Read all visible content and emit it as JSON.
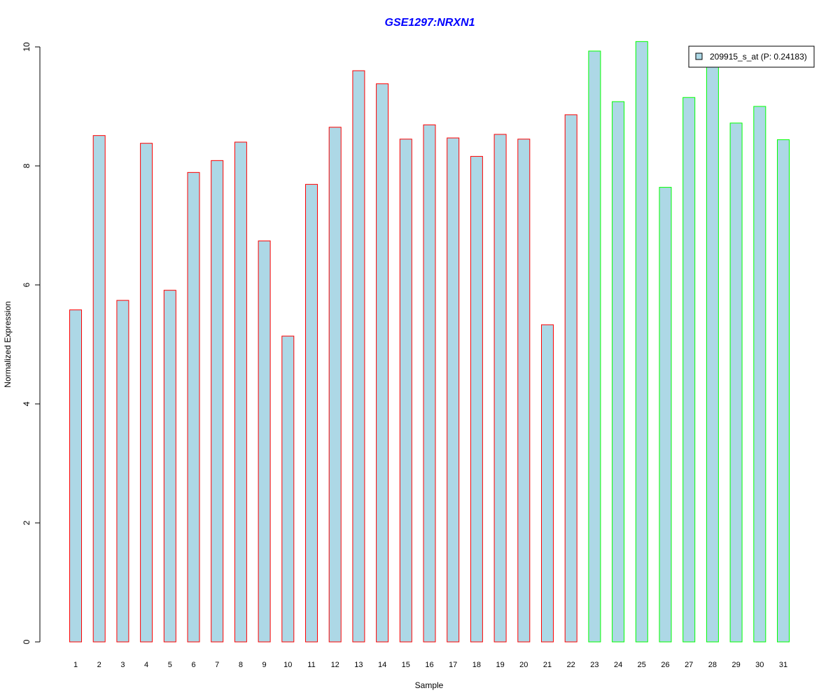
{
  "chart_data": {
    "type": "bar",
    "title": "GSE1297:NRXN1",
    "xlabel": "Sample",
    "ylabel": "Normalized Expression",
    "ylim": [
      0,
      10
    ],
    "yticks": [
      0,
      2,
      4,
      6,
      8,
      10
    ],
    "categories": [
      "1",
      "2",
      "3",
      "4",
      "5",
      "6",
      "7",
      "8",
      "9",
      "10",
      "11",
      "12",
      "13",
      "14",
      "15",
      "16",
      "17",
      "18",
      "19",
      "20",
      "21",
      "22",
      "23",
      "24",
      "25",
      "26",
      "27",
      "28",
      "29",
      "30",
      "31"
    ],
    "values": [
      5.58,
      8.51,
      5.74,
      8.38,
      5.91,
      7.89,
      8.09,
      8.4,
      6.74,
      5.14,
      7.69,
      8.65,
      9.6,
      9.38,
      8.45,
      8.69,
      8.47,
      8.16,
      8.53,
      8.45,
      5.33,
      8.86,
      9.93,
      9.08,
      10.09,
      7.64,
      9.15,
      9.75,
      8.72,
      9.0,
      8.44
    ],
    "groups": [
      "red",
      "red",
      "red",
      "red",
      "red",
      "red",
      "red",
      "red",
      "red",
      "red",
      "red",
      "red",
      "red",
      "red",
      "red",
      "red",
      "red",
      "red",
      "red",
      "red",
      "red",
      "red",
      "green",
      "green",
      "green",
      "green",
      "green",
      "green",
      "green",
      "green",
      "green"
    ],
    "colors": {
      "fill": "#add8e6",
      "red": "#ff0000",
      "green": "#00ff00",
      "title": "#0000ff"
    },
    "legend": {
      "label": "209915_s_at (P: 0.24183)",
      "position": "top-right"
    },
    "grid": false
  }
}
